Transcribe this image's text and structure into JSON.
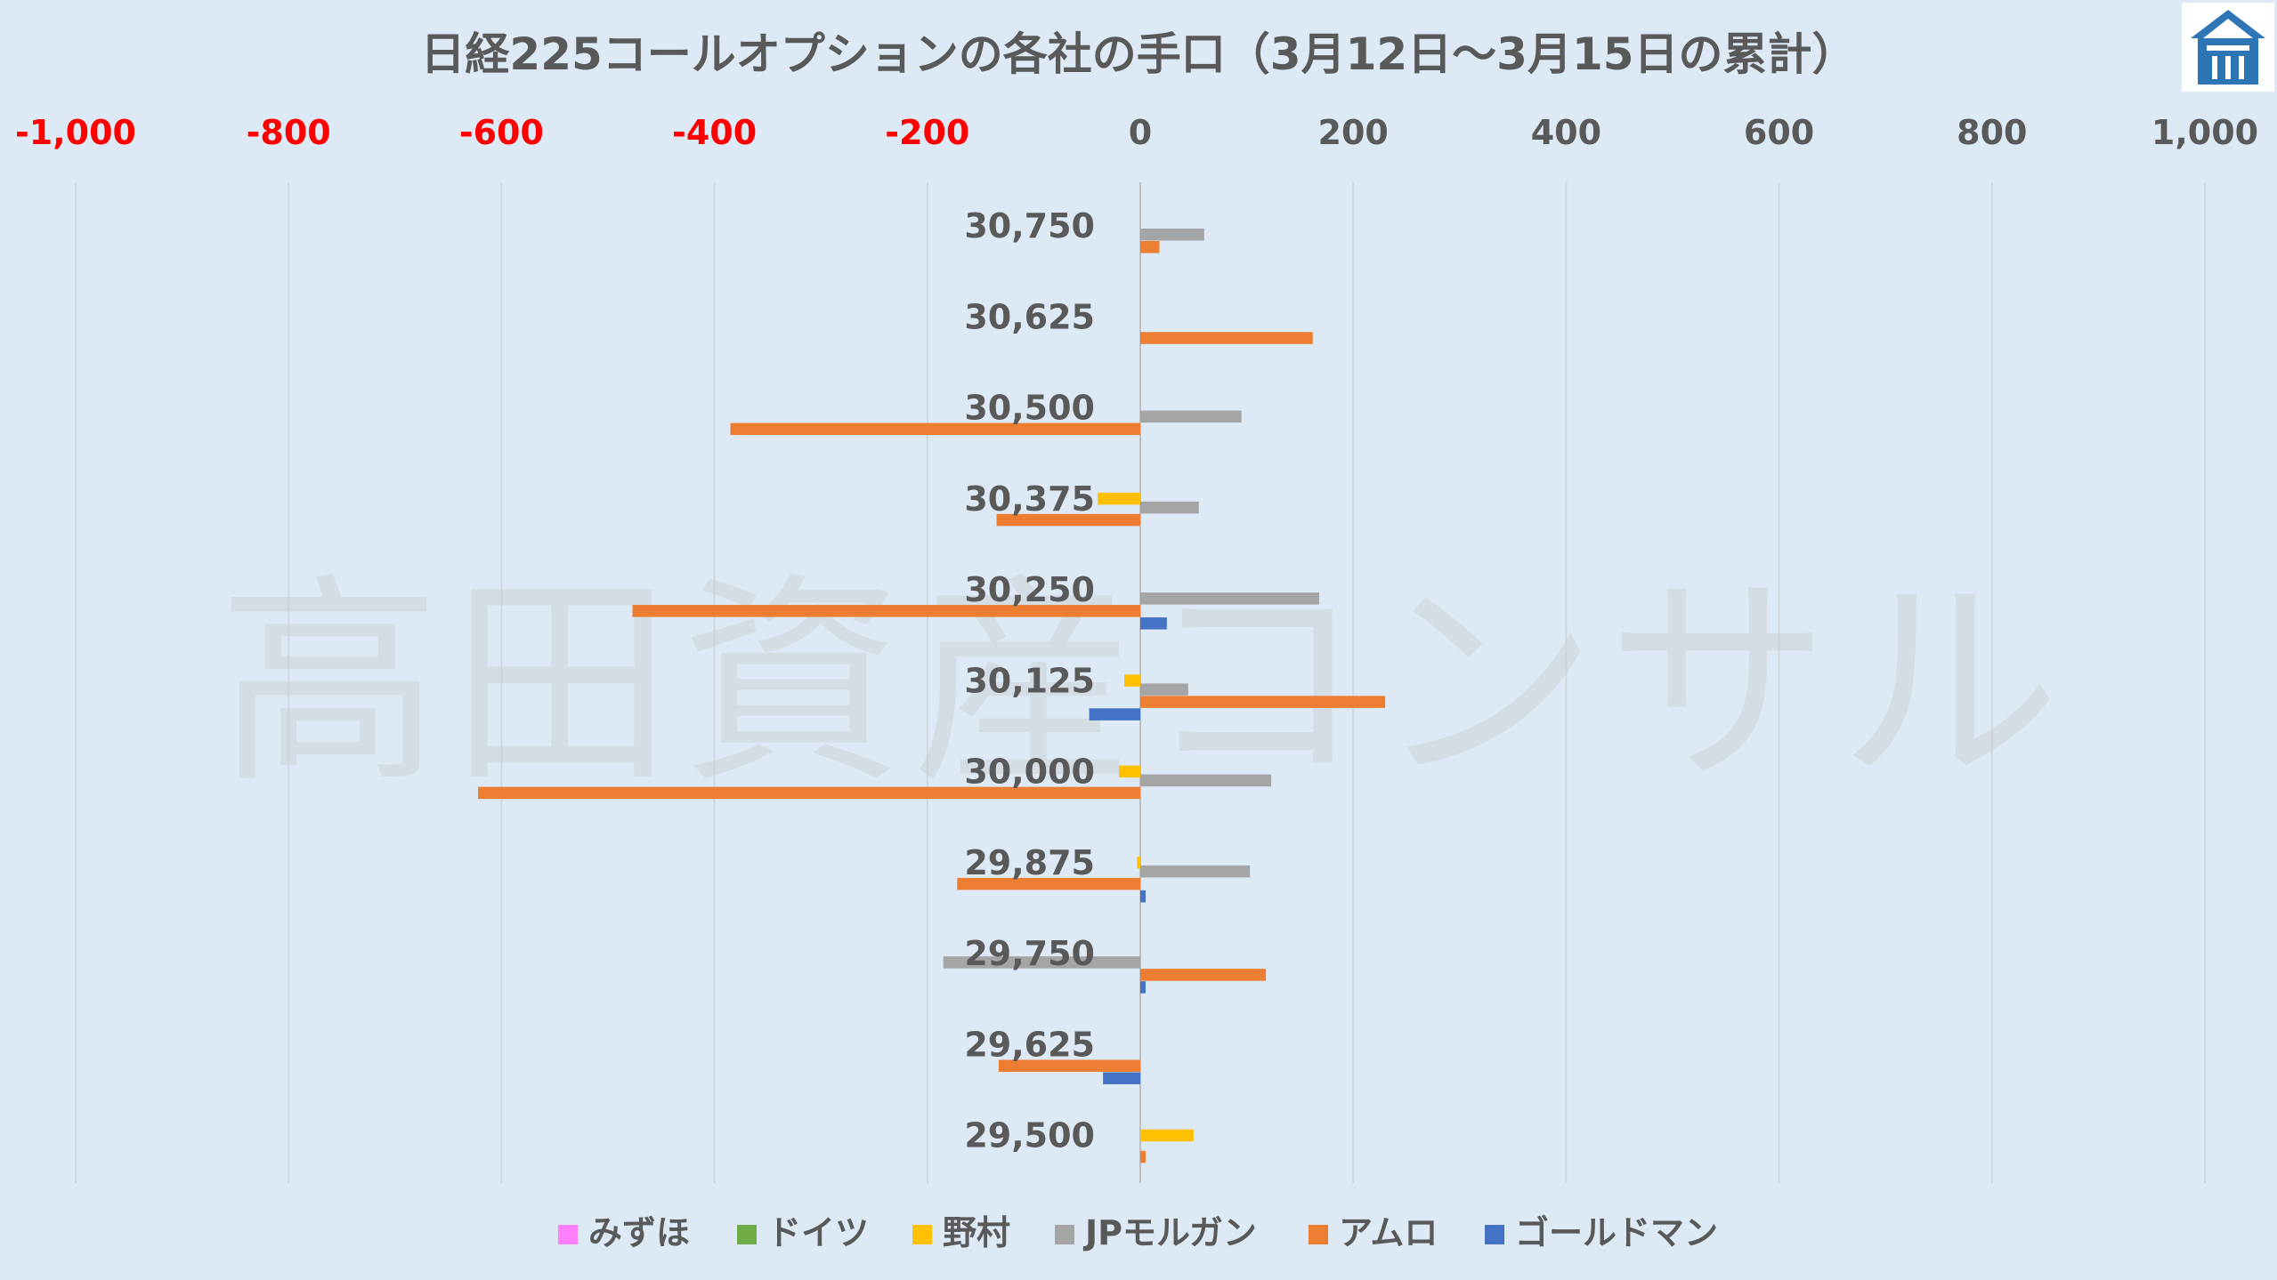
{
  "chart_data": {
    "type": "bar",
    "orientation": "horizontal",
    "title": "日経225コールオプションの各社の手口（3月12日〜3月15日の累計）",
    "watermark": "高田資産コンサル",
    "xlim": [
      -1000,
      1000
    ],
    "xticks": [
      {
        "value": -1000,
        "label": "-1,000"
      },
      {
        "value": -800,
        "label": "-800"
      },
      {
        "value": -600,
        "label": "-600"
      },
      {
        "value": -400,
        "label": "-400"
      },
      {
        "value": -200,
        "label": "-200"
      },
      {
        "value": 0,
        "label": "0"
      },
      {
        "value": 200,
        "label": "200"
      },
      {
        "value": 400,
        "label": "400"
      },
      {
        "value": 600,
        "label": "600"
      },
      {
        "value": 800,
        "label": "800"
      },
      {
        "value": 1000,
        "label": "1,000"
      }
    ],
    "negative_tick_color": "#ff0000",
    "positive_tick_color": "#595959",
    "grid": true,
    "legend_position": "bottom",
    "categories": [
      "30,750",
      "30,625",
      "30,500",
      "30,375",
      "30,250",
      "30,125",
      "30,000",
      "29,875",
      "29,750",
      "29,625",
      "29,500"
    ],
    "series": [
      {
        "name": "みずほ",
        "color": "#ff80ff",
        "values": [
          0,
          0,
          0,
          0,
          0,
          0,
          0,
          0,
          0,
          0,
          0
        ]
      },
      {
        "name": "ドイツ",
        "color": "#70ad47",
        "values": [
          0,
          0,
          0,
          0,
          0,
          0,
          0,
          0,
          0,
          0,
          0
        ]
      },
      {
        "name": "野村",
        "color": "#ffc000",
        "values": [
          0,
          0,
          0,
          -40,
          0,
          -15,
          -20,
          -3,
          0,
          0,
          50
        ]
      },
      {
        "name": "JPモルガン",
        "color": "#a5a5a5",
        "values": [
          60,
          0,
          95,
          55,
          168,
          45,
          123,
          103,
          -185,
          0,
          0
        ]
      },
      {
        "name": "アムロ",
        "color": "#ed7d31",
        "values": [
          18,
          162,
          -385,
          -135,
          -477,
          230,
          -622,
          -172,
          118,
          -133,
          5
        ]
      },
      {
        "name": "ゴールドマン",
        "color": "#4472c4",
        "values": [
          0,
          0,
          0,
          0,
          25,
          -48,
          0,
          5,
          5,
          -35,
          0
        ]
      }
    ]
  }
}
